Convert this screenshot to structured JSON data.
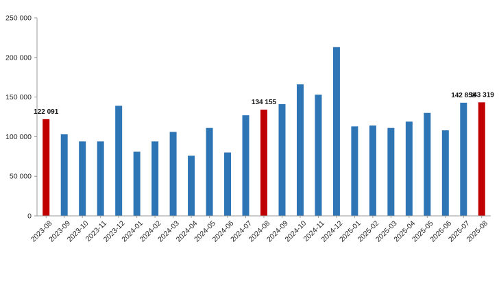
{
  "chart_data": {
    "type": "bar",
    "title": "",
    "xlabel": "",
    "ylabel": "",
    "ylim": [
      0,
      250000
    ],
    "yticks": [
      0,
      50000,
      100000,
      150000,
      200000,
      250000
    ],
    "ytick_labels": [
      "0",
      "50 000",
      "100 000",
      "150 000",
      "200 000",
      "250 000"
    ],
    "grid": false,
    "categories": [
      "2023-08",
      "2023-09",
      "2023-10",
      "2023-11",
      "2023-12",
      "2024-01",
      "2024-02",
      "2024-03",
      "2024-04",
      "2024-05",
      "2024-06",
      "2024-07",
      "2024-08",
      "2024-09",
      "2024-10",
      "2024-11",
      "2024-12",
      "2025-01",
      "2025-02",
      "2025-03",
      "2025-04",
      "2025-05",
      "2025-06",
      "2025-07",
      "2025-08"
    ],
    "values": [
      122091,
      103000,
      94000,
      94000,
      139000,
      81000,
      94000,
      106000,
      76000,
      111000,
      80000,
      127000,
      134155,
      141000,
      166000,
      153000,
      213000,
      113000,
      114000,
      111000,
      119000,
      130000,
      108000,
      142858,
      143319
    ],
    "highlight_indices": [
      0,
      12,
      24
    ],
    "data_labels": [
      {
        "index": 0,
        "text": "122 091"
      },
      {
        "index": 12,
        "text": "134 155"
      },
      {
        "index": 23,
        "text": "142 858"
      },
      {
        "index": 24,
        "text": "143 319"
      }
    ],
    "colors": {
      "bar": "#2e75b6",
      "highlight": "#c00000"
    }
  }
}
